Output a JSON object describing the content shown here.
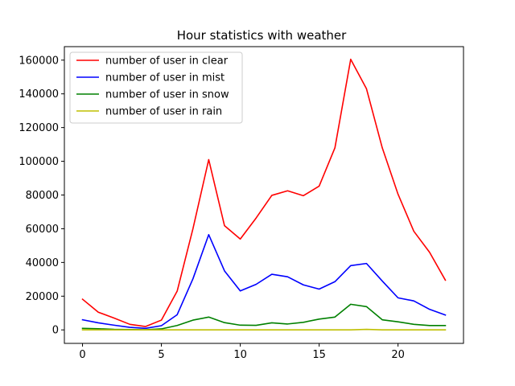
{
  "chart_data": {
    "type": "line",
    "title": "Hour statistics with weather",
    "xlabel": "",
    "ylabel": "",
    "xlim": [
      -1.15,
      24.15
    ],
    "ylim": [
      -8000,
      168000
    ],
    "x_ticks": [
      0,
      5,
      10,
      15,
      20
    ],
    "y_ticks": [
      0,
      20000,
      40000,
      60000,
      80000,
      100000,
      120000,
      140000,
      160000
    ],
    "x": [
      0,
      1,
      2,
      3,
      4,
      5,
      6,
      7,
      8,
      9,
      10,
      11,
      12,
      13,
      14,
      15,
      16,
      17,
      18,
      19,
      20,
      21,
      22,
      23
    ],
    "grid": false,
    "legend_position": "top-left",
    "series": [
      {
        "name": "number of user in clear",
        "color": "#ff0000",
        "values": [
          18200,
          10500,
          7000,
          3300,
          2000,
          5800,
          23000,
          60000,
          101000,
          61800,
          53900,
          66300,
          79800,
          82500,
          79600,
          85300,
          108000,
          160500,
          143000,
          108000,
          80500,
          58500,
          46000,
          29500
        ]
      },
      {
        "name": "number of user in mist",
        "color": "#0000ff",
        "values": [
          6000,
          4200,
          2800,
          1500,
          900,
          2500,
          9000,
          30300,
          56500,
          35000,
          23100,
          27000,
          33000,
          31500,
          26700,
          24200,
          28600,
          38100,
          39400,
          29000,
          19000,
          17200,
          12200,
          8800
        ]
      },
      {
        "name": "number of user in snow",
        "color": "#008000",
        "values": [
          900,
          700,
          300,
          200,
          100,
          600,
          2600,
          5800,
          7600,
          4300,
          2800,
          2700,
          4200,
          3500,
          4500,
          6400,
          7600,
          15200,
          13800,
          6000,
          4800,
          3300,
          2600,
          2600
        ]
      },
      {
        "name": "number of user in rain",
        "color": "#bfbf00",
        "values": [
          0,
          0,
          0,
          0,
          0,
          0,
          0,
          0,
          0,
          0,
          0,
          0,
          0,
          0,
          0,
          0,
          0,
          0,
          300,
          0,
          0,
          0,
          0,
          0
        ]
      }
    ]
  }
}
